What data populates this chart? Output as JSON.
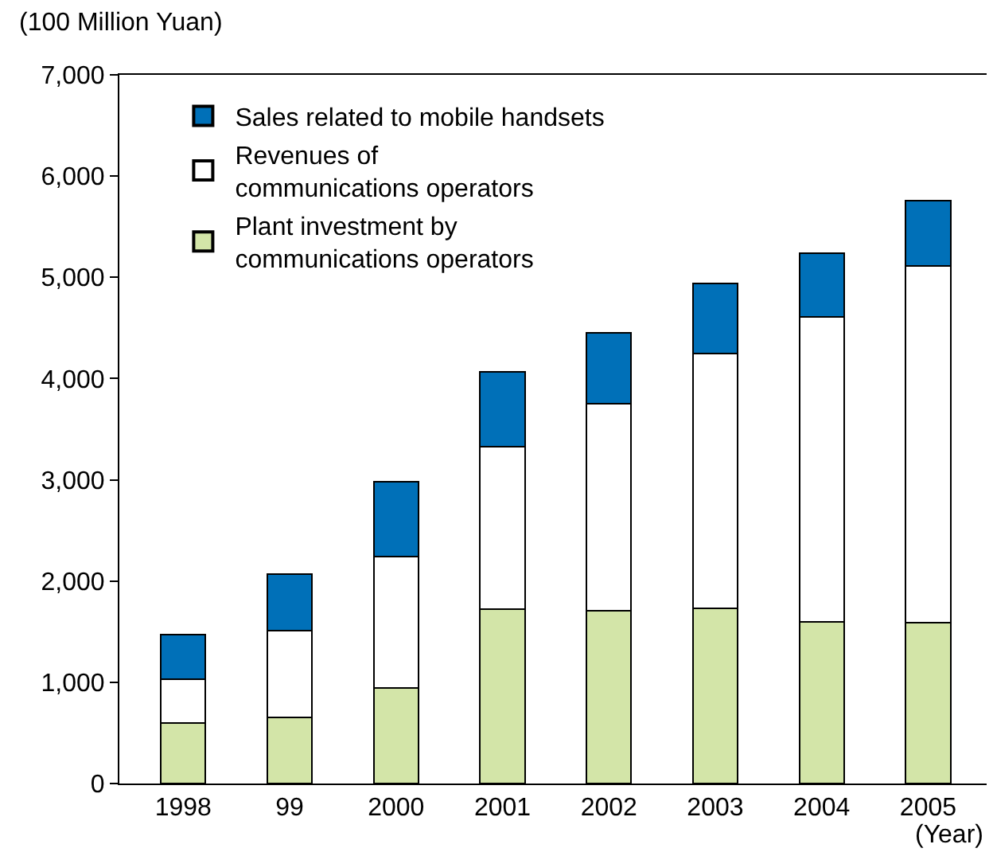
{
  "chart_data": {
    "type": "bar",
    "stacked": true,
    "ylabel": "(100 Million Yuan)",
    "xlabel": "(Year)",
    "categories": [
      "1998",
      "99",
      "2000",
      "2001",
      "2002",
      "2003",
      "2004",
      "2005"
    ],
    "series": [
      {
        "name": "Plant investment by\ncommunications operators",
        "color": "#d3e5a8",
        "values": [
          600,
          650,
          940,
          1720,
          1710,
          1730,
          1600,
          1590
        ]
      },
      {
        "name": "Revenues of\ncommunications operators",
        "color": "#ffffff",
        "values": [
          430,
          860,
          1300,
          1610,
          2040,
          2520,
          3010,
          3520
        ]
      },
      {
        "name": "Sales related to mobile handsets",
        "color": "#0070b8",
        "values": [
          440,
          560,
          740,
          740,
          700,
          690,
          630,
          650
        ]
      }
    ],
    "ylim": [
      0,
      7000
    ],
    "yticks": [
      {
        "value": 0,
        "label": "0"
      },
      {
        "value": 1000,
        "label": "1,000"
      },
      {
        "value": 2000,
        "label": "2,000"
      },
      {
        "value": 3000,
        "label": "3,000"
      },
      {
        "value": 4000,
        "label": "4,000"
      },
      {
        "value": 5000,
        "label": "5,000"
      },
      {
        "value": 6000,
        "label": "6,000"
      },
      {
        "value": 7000,
        "label": "7,000"
      }
    ],
    "legend": "top left"
  }
}
